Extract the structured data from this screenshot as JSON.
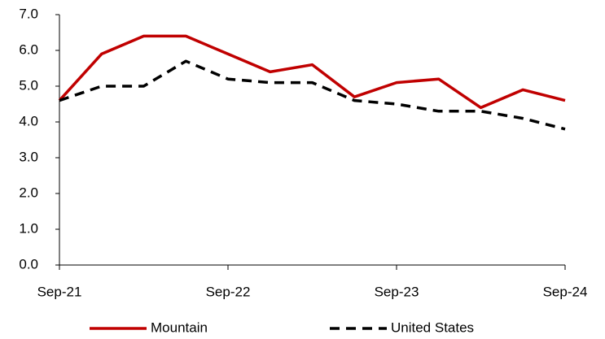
{
  "chart_data": {
    "type": "line",
    "categories": [
      "Sep-21",
      null,
      null,
      null,
      "Sep-22",
      null,
      null,
      null,
      "Sep-23",
      null,
      null,
      null,
      "Sep-24"
    ],
    "series": [
      {
        "name": "Mountain",
        "color": "#c00000",
        "dash": false,
        "values": [
          4.6,
          5.9,
          6.4,
          6.4,
          5.9,
          5.4,
          5.6,
          4.7,
          5.1,
          5.2,
          4.4,
          4.9,
          4.6
        ]
      },
      {
        "name": "United States",
        "color": "#000000",
        "dash": true,
        "values": [
          4.6,
          5.0,
          5.0,
          5.7,
          5.2,
          5.1,
          5.1,
          4.6,
          4.5,
          4.3,
          4.3,
          4.1,
          3.8
        ]
      }
    ],
    "ylim": [
      0,
      7
    ],
    "yticks": [
      {
        "value": 0,
        "label": "0.0"
      },
      {
        "value": 1,
        "label": "1.0"
      },
      {
        "value": 2,
        "label": "2.0"
      },
      {
        "value": 3,
        "label": "3.0"
      },
      {
        "value": 4,
        "label": "4.0"
      },
      {
        "value": 5,
        "label": "5.0"
      },
      {
        "value": 6,
        "label": "6.0"
      },
      {
        "value": 7,
        "label": "7.0"
      }
    ],
    "grid": false,
    "legend": "bottom"
  }
}
